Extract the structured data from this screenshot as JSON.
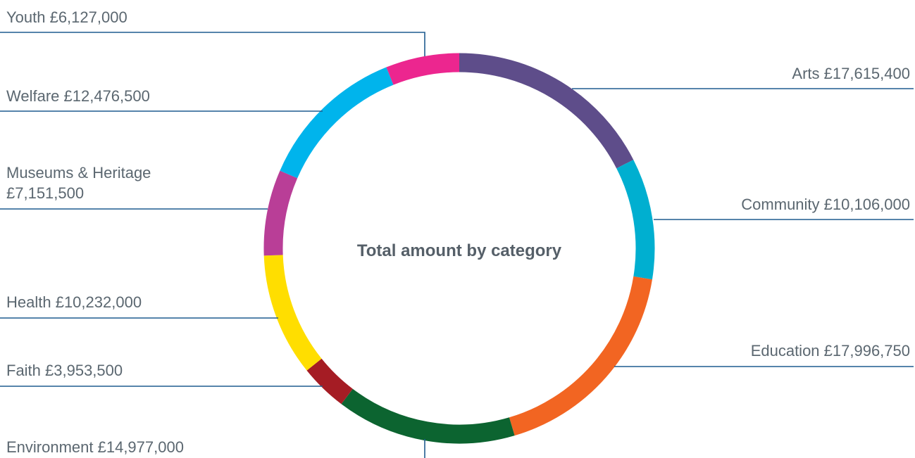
{
  "chart_data": {
    "type": "pie",
    "title": "Total amount by category",
    "currency_symbol": "£",
    "categories": [
      "Arts",
      "Community",
      "Education",
      "Environment",
      "Faith",
      "Health",
      "Museums & Heritage",
      "Welfare",
      "Youth"
    ],
    "values": [
      17615400,
      10106000,
      17996750,
      14977000,
      3953500,
      10232000,
      7151500,
      12476500,
      6127000
    ],
    "colors": [
      "#5e4d8a",
      "#00afd0",
      "#f26522",
      "#0c6430",
      "#a51c24",
      "#ffde00",
      "#b93e97",
      "#00b4ec",
      "#ec268f"
    ],
    "labels": [
      {
        "category": "Arts",
        "text": "Arts £17,615,400"
      },
      {
        "category": "Community",
        "text": "Community £10,106,000"
      },
      {
        "category": "Education",
        "text": "Education £17,996,750"
      },
      {
        "category": "Environment",
        "text": "Environment £14,977,000"
      },
      {
        "category": "Faith",
        "text": "Faith £3,953,500"
      },
      {
        "category": "Health",
        "text": "Health £10,232,000"
      },
      {
        "category": "Museums & Heritage",
        "lines": [
          "Museums & Heritage",
          "£7,151,500"
        ]
      },
      {
        "category": "Welfare",
        "text": "Welfare £12,476,500"
      },
      {
        "category": "Youth",
        "text": "Youth £6,127,000"
      }
    ],
    "donut": true,
    "legend": "none",
    "leader_color": "#1f5c8f"
  }
}
